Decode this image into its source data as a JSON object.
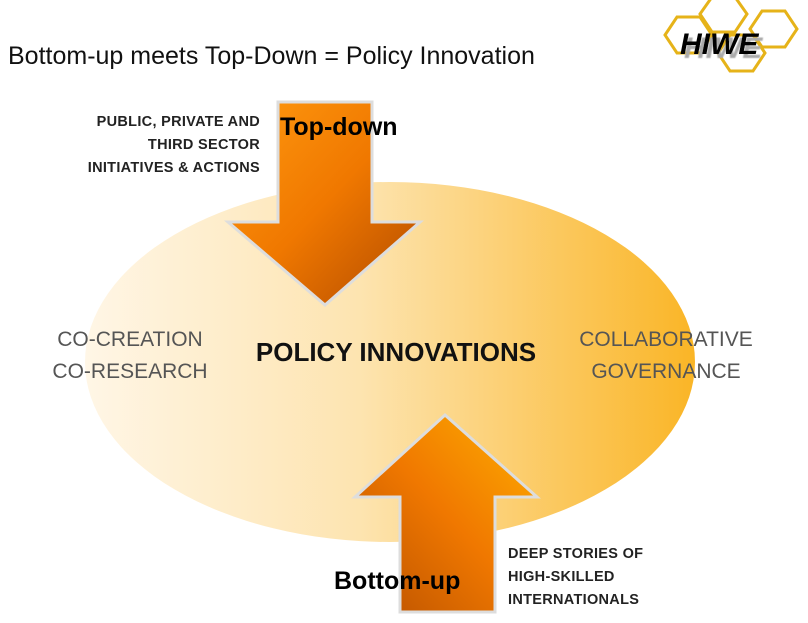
{
  "title": "Bottom-up meets Top-Down = Policy Innovation",
  "logo": {
    "text": "HIWE",
    "hex_color": "#e6b319"
  },
  "top_arrow": {
    "label": "Top-down",
    "note": [
      "PUBLIC, PRIVATE AND",
      "THIRD SECTOR",
      "INITIATIVES & ACTIONS"
    ]
  },
  "bottom_arrow": {
    "label": "Bottom-up",
    "note": [
      "DEEP STORIES OF",
      "HIGH-SKILLED",
      "INTERNATIONALS"
    ]
  },
  "center": "POLICY INNOVATIONS",
  "left_side": [
    "CO-CREATION",
    "CO-RESEARCH"
  ],
  "right_side": [
    "COLLABORATIVE",
    "GOVERNANCE"
  ],
  "colors": {
    "ellipse_light": "#fdf0d8",
    "ellipse_dark": "#f9b81e",
    "arrow": "#f07d00"
  }
}
